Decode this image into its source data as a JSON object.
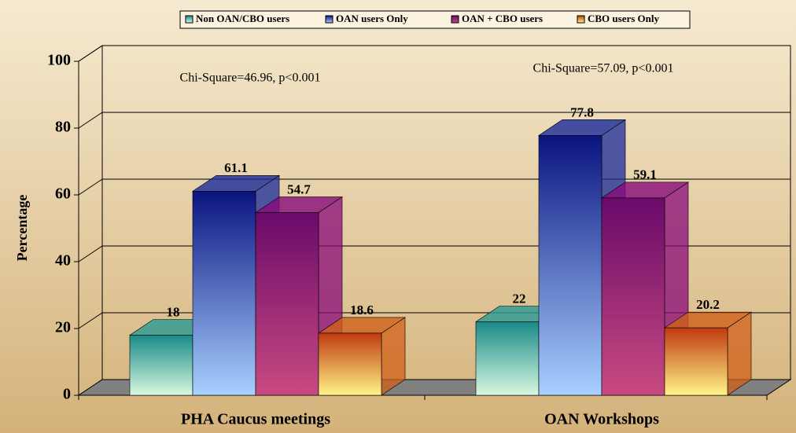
{
  "chart_data": {
    "type": "bar3d",
    "categories": [
      "PHA Caucus meetings",
      "OAN Workshops"
    ],
    "series": [
      {
        "name": "Non OAN/CBO users",
        "color": "#2a9a94",
        "values": [
          18,
          22
        ]
      },
      {
        "name": "OAN users Only",
        "color": "#1a2a9a",
        "values": [
          61.1,
          77.8
        ]
      },
      {
        "name": "OAN + CBO  users",
        "color": "#8a0a7a",
        "values": [
          54.7,
          59.1
        ]
      },
      {
        "name": "CBO users Only",
        "color": "#d0601a",
        "values": [
          18.6,
          20.2
        ]
      }
    ],
    "ylabel": "Percentage",
    "ylim": [
      0,
      100
    ],
    "yticks": [
      0,
      20,
      40,
      60,
      80,
      100
    ],
    "grid": true,
    "annotations": [
      "Chi-Square=46.96, p<0.001",
      "Chi-Square=57.09, p<0.001"
    ],
    "legend": "top"
  }
}
